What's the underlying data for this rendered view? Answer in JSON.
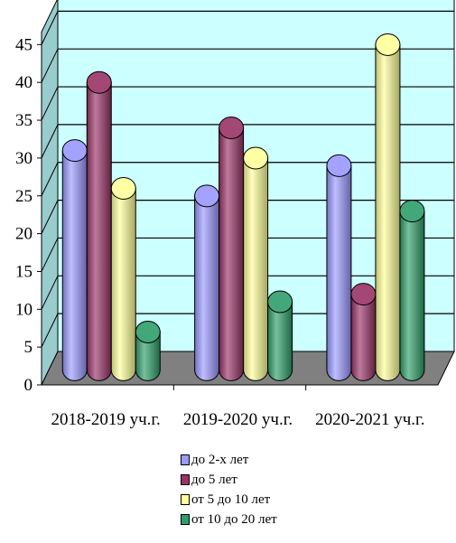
{
  "chart_data": {
    "type": "bar",
    "style": "3d-cylinder",
    "categories": [
      "2018-2019 уч.г.",
      "2019-2020 уч.г.",
      "2020-2021 уч.г."
    ],
    "series": [
      {
        "name": "до 2-х лет",
        "color": "#9999ff",
        "values": [
          29,
          23,
          27
        ]
      },
      {
        "name": "до 5 лет",
        "color": "#993366",
        "values": [
          38,
          32,
          10
        ]
      },
      {
        "name": "от 5 до 10 лет",
        "color": "#ffff99",
        "values": [
          24,
          28,
          43
        ]
      },
      {
        "name": "от 10 до 20 лет",
        "color": "#2e9e6a",
        "values": [
          5,
          9,
          21
        ]
      }
    ],
    "yticks": [
      0,
      5,
      10,
      15,
      20,
      25,
      30,
      35,
      40,
      45
    ],
    "ylim": [
      0,
      45
    ],
    "grid": true,
    "legend_position": "bottom",
    "wall_color": "#ccffff",
    "floor_color": "#808080"
  }
}
